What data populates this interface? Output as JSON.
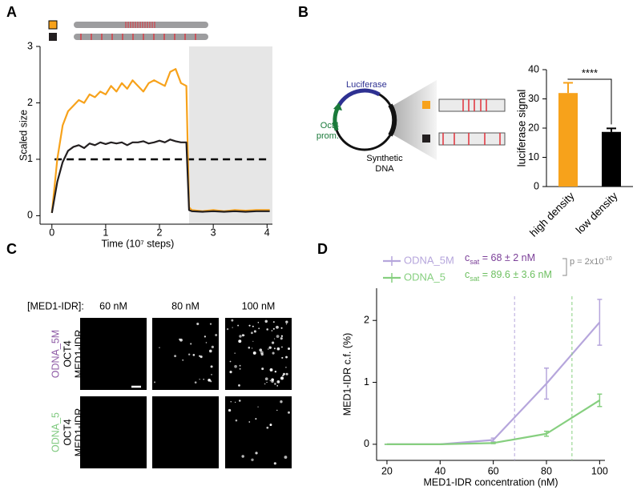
{
  "panel_labels": [
    "A",
    "B",
    "C",
    "D"
  ],
  "plasmid": {
    "luciferase": "Luciferase",
    "promoter": [
      "Oct4",
      "prom."
    ],
    "insert": [
      "Synthetic",
      "DNA"
    ]
  },
  "micrographs": {
    "header": "[MED1-IDR]:",
    "columns": [
      "60 nM",
      "80 nM",
      "100 nM"
    ],
    "rows": [
      {
        "name": "ODNA_5M",
        "color": "#8e5ba6",
        "labels": [
          "OCT4",
          "MED1-IDR"
        ]
      },
      {
        "name": "ODNA_5",
        "color": "#7fc97f",
        "labels": [
          "OCT4",
          "MED1-IDR"
        ]
      }
    ]
  },
  "chart_data": [
    {
      "type": "line",
      "xlabel": "Time (10⁷ steps)",
      "ylabel": "Scaled size",
      "xlim": [
        -0.22,
        4.1
      ],
      "ylim": [
        -0.15,
        3
      ],
      "xticks": [
        0,
        1,
        2,
        3,
        4
      ],
      "yticks": [
        0,
        1,
        2,
        3
      ],
      "hline": 1,
      "shade": [
        2.55,
        4.1
      ],
      "x": [
        0,
        0.1,
        0.2,
        0.3,
        0.4,
        0.5,
        0.6,
        0.7,
        0.8,
        0.9,
        1.0,
        1.1,
        1.2,
        1.3,
        1.4,
        1.5,
        1.6,
        1.7,
        1.8,
        1.9,
        2.0,
        2.1,
        2.2,
        2.3,
        2.4,
        2.5,
        2.55,
        2.6,
        2.8,
        3.0,
        3.2,
        3.4,
        3.6,
        3.8,
        4.05
      ],
      "series": [
        {
          "color": "#f7a21b",
          "values": [
            0.05,
            1.0,
            1.6,
            1.85,
            1.95,
            2.05,
            2.0,
            2.15,
            2.1,
            2.2,
            2.15,
            2.3,
            2.2,
            2.35,
            2.25,
            2.4,
            2.3,
            2.2,
            2.35,
            2.4,
            2.35,
            2.3,
            2.55,
            2.6,
            2.35,
            2.3,
            0.15,
            0.1,
            0.08,
            0.1,
            0.08,
            0.1,
            0.09,
            0.1,
            0.1
          ]
        },
        {
          "color": "#231f20",
          "values": [
            0.05,
            0.6,
            0.95,
            1.15,
            1.22,
            1.25,
            1.2,
            1.28,
            1.25,
            1.3,
            1.27,
            1.3,
            1.28,
            1.3,
            1.25,
            1.3,
            1.3,
            1.32,
            1.28,
            1.3,
            1.33,
            1.3,
            1.35,
            1.32,
            1.3,
            1.3,
            0.1,
            0.08,
            0.07,
            0.08,
            0.07,
            0.08,
            0.07,
            0.08,
            0.08
          ]
        }
      ]
    },
    {
      "type": "bar",
      "ylabel": "luciferase signal",
      "categories": [
        "high density",
        "low density"
      ],
      "values": [
        32,
        18.7
      ],
      "errors": [
        3.5,
        1.2
      ],
      "colors": [
        "#f7a21b",
        "#000000"
      ],
      "ylim": [
        0,
        40
      ],
      "yticks": [
        0,
        10,
        20,
        30,
        40
      ],
      "annotation": "****"
    },
    {
      "type": "line",
      "xlabel": "MED1-IDR concentration (nM)",
      "ylabel": "MED1-IDR c.f. (%)",
      "xlim": [
        16.1,
        102
      ],
      "ylim": [
        -0.26,
        2.52
      ],
      "xticks": [
        20,
        40,
        60,
        80,
        100
      ],
      "yticks": [
        0,
        1,
        2
      ],
      "x": [
        20,
        40,
        60,
        80,
        100
      ],
      "series": [
        {
          "name": "ODNA_5M",
          "color": "#b6a6dc",
          "text_color": "#7b3f98",
          "values": [
            0,
            0,
            0.07,
            0.98,
            1.97
          ],
          "errors": [
            0,
            0,
            0.03,
            0.25,
            0.37
          ],
          "csat": 68,
          "csat_label": [
            "c",
            "sat",
            " = 68 ± 2 nM"
          ]
        },
        {
          "name": "ODNA_5",
          "color": "#86cf7f",
          "text_color": "#6cbf5f",
          "values": [
            0,
            0,
            0.02,
            0.17,
            0.71
          ],
          "errors": [
            0,
            0,
            0.01,
            0.04,
            0.1
          ],
          "csat": 89.6,
          "csat_label": [
            "c",
            "sat",
            " = 89.6 ± 3.6 nM"
          ]
        }
      ],
      "pvalue": [
        "p = 2x10",
        "-10"
      ]
    }
  ]
}
